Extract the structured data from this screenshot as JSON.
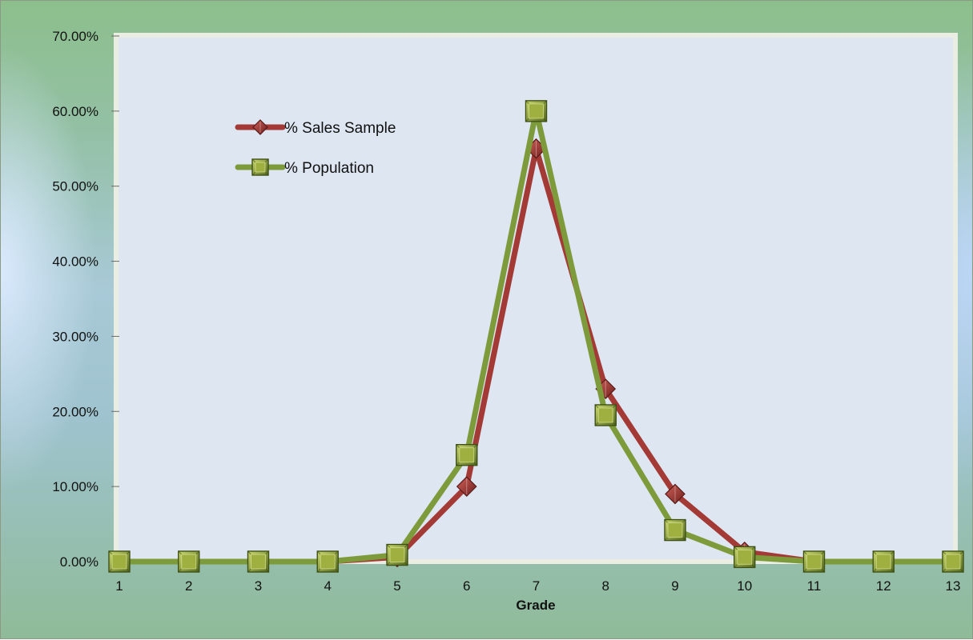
{
  "chart_data": {
    "type": "line",
    "title": "",
    "xlabel": "Grade",
    "ylabel": "",
    "x": [
      "1",
      "2",
      "3",
      "4",
      "5",
      "6",
      "7",
      "8",
      "9",
      "10",
      "11",
      "12",
      "13"
    ],
    "ylim": [
      0,
      0.7
    ],
    "yticks": [
      0,
      0.1,
      0.2,
      0.3,
      0.4,
      0.5,
      0.6,
      0.7
    ],
    "ytick_labels": [
      "0.00%",
      "10.00%",
      "20.00%",
      "30.00%",
      "40.00%",
      "50.00%",
      "60.00%",
      "70.00%"
    ],
    "grid": false,
    "legend_position": "top-left",
    "series": [
      {
        "name": "% Sales Sample",
        "color": "#a33a35",
        "marker": "diamond",
        "values": [
          0,
          0,
          0,
          0,
          0.006,
          0.1,
          0.55,
          0.23,
          0.09,
          0.013,
          0,
          0,
          0
        ]
      },
      {
        "name": "% Population",
        "color": "#7e9b3c",
        "marker": "square",
        "values": [
          0,
          0,
          0,
          0,
          0.009,
          0.142,
          0.6,
          0.195,
          0.042,
          0.006,
          0,
          0,
          0
        ]
      }
    ]
  },
  "colors": {
    "plot_background": "#dde6f1",
    "plot_border": "#e7eadf"
  }
}
